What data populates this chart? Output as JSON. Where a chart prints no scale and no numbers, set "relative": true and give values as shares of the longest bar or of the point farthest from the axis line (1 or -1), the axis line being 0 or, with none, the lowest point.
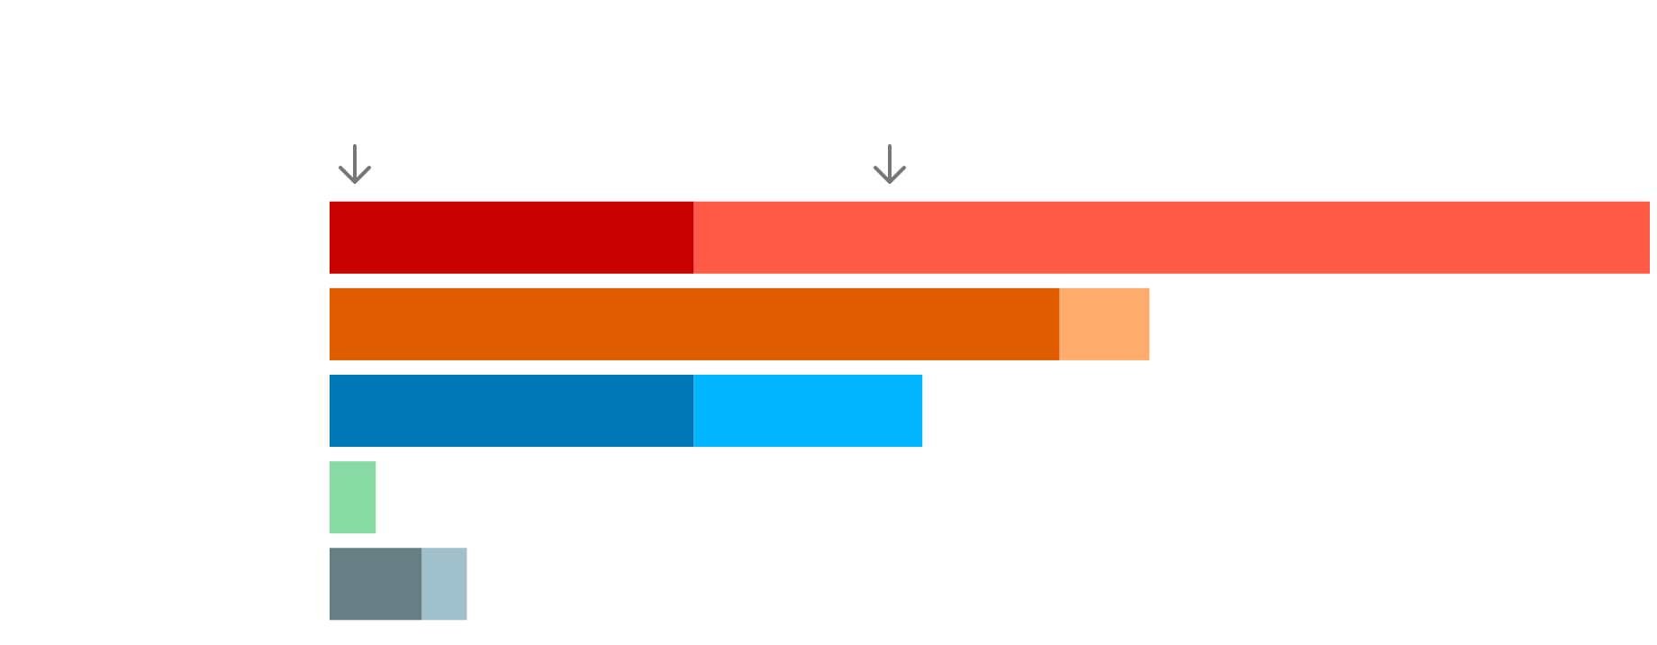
{
  "chart_data": {
    "type": "bar",
    "orientation": "horizontal",
    "stacked": true,
    "relative": true,
    "categories": [
      null,
      null,
      null,
      null,
      null
    ],
    "series": [
      {
        "colors": [
          "#c80000",
          "#e05c00",
          "#0077b6",
          "#88dba4",
          "#677f84"
        ],
        "values": [
          0.276,
          0.553,
          0.276,
          0.035,
          0.07
        ]
      },
      {
        "colors": [
          "#ff5a46",
          "#ffab6b",
          "#00b4ff",
          null,
          "#a0c1cc"
        ],
        "values": [
          0.724,
          0.068,
          0.173,
          null,
          0.034
        ]
      }
    ]
  }
}
